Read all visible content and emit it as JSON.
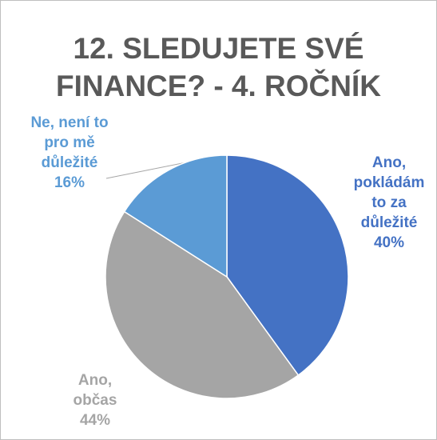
{
  "chart_data": {
    "type": "pie",
    "title": "12. SLEDUJETE SVÉ FINANCE? - 4. ROČNÍK",
    "categories": [
      "Ano, pokládám to za důležité",
      "Ano, občas",
      "Ne, není to pro mě důležité"
    ],
    "values": [
      40,
      44,
      16
    ],
    "value_labels": [
      "40%",
      "44%",
      "16%"
    ],
    "colors": [
      "#4472c4",
      "#a5a5a5",
      "#5b9bd5"
    ]
  }
}
